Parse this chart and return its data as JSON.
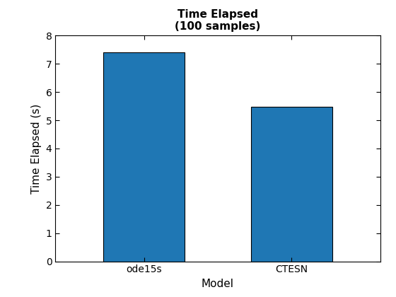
{
  "categories": [
    "ode15s",
    "CTESN"
  ],
  "values": [
    7.4,
    5.48
  ],
  "bar_color": "#1f77b4",
  "bar_edge_color": "#000000",
  "title_line1": "Time Elapsed",
  "title_line2": "(100 samples)",
  "xlabel": "Model",
  "ylabel": "Time Elapsed (s)",
  "ylim": [
    0,
    8
  ],
  "yticks": [
    0,
    1,
    2,
    3,
    4,
    5,
    6,
    7,
    8
  ],
  "title_fontsize": 11,
  "axis_label_fontsize": 11,
  "tick_fontsize": 10,
  "bar_width": 0.55,
  "xlim": [
    -0.6,
    1.6
  ],
  "background_color": "#ffffff"
}
